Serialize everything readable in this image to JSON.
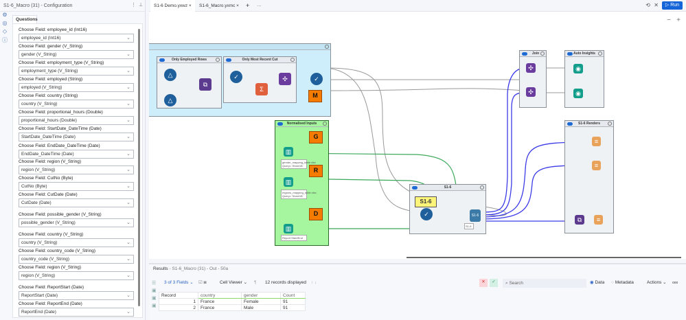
{
  "config": {
    "title": "S1-6_Macro (31) - Configuration",
    "tab": "Questions",
    "fields": [
      {
        "label": "Choose Field: employee_id (Int16)",
        "value": "employee_id (Int16)"
      },
      {
        "label": "Choose Field: gender (V_String)",
        "value": "gender (V_String)"
      },
      {
        "label": "Choose Field: employment_type (V_String)",
        "value": "employment_type (V_String)"
      },
      {
        "label": "Choose Field: employed (String)",
        "value": "employed (V_String)"
      },
      {
        "label": "Choose Field: country (String)",
        "value": "country (V_String)"
      },
      {
        "label": "Choose Field: proportional_hours (Double)",
        "value": "proportional_hours (Double)"
      },
      {
        "label": "Choose Field: StartDate_DateTime (Date)",
        "value": "StartDate_DateTime (Date)"
      },
      {
        "label": "Choose Field: EndDate_DateTime (Date)",
        "value": "EndDate_DateTime (Date)"
      },
      {
        "label": "Choose Field: region (V_String)",
        "value": "region (V_String)"
      },
      {
        "label": "Choose Field: CutNo (Byte)",
        "value": "CutNo (Byte)"
      },
      {
        "label": "Choose Field: CutDate (Date)",
        "value": "CutDate (Date)"
      },
      {
        "label": "Choose Field: possible_gender (V_String)",
        "value": "possible_gender (V_String)"
      },
      {
        "label": "Choose Field: country (V_String)",
        "value": "country (V_String)"
      },
      {
        "label": "Choose Field: country_code (V_String)",
        "value": "country_code (V_String)"
      },
      {
        "label": "Choose Field: region (V_String)",
        "value": "region (V_String)"
      },
      {
        "label": "Choose Field: ReportStart (Date)",
        "value": "ReportStart (Date)"
      },
      {
        "label": "Choose Field: ReportEnd (Date)",
        "value": "ReportEnd (Date)"
      }
    ]
  },
  "tabs": [
    {
      "label": "S1-6 Demo.yxwz ×"
    },
    {
      "label": "S1-6_Macro.yxmc ×"
    }
  ],
  "toolbar": {
    "run": "Run"
  },
  "canvas": {
    "containers": {
      "employed": "Only Employed Rows",
      "recent": "Only Most Recent Cut",
      "normalised": "Normalised Inputs",
      "join": "Join",
      "insights": "Auto Insights",
      "renders": "S1-6 Renders",
      "s16": "S1-6"
    },
    "labels": {
      "m": "M",
      "g": "G",
      "r": "R",
      "d": "D",
      "s16": "S1-6",
      "s16small": "S1-6"
    },
    "notes": [
      "gender_mapping_table.xlsx Query=`Sheet1$`",
      "regions_mapping_table.xlsx Query=`Sheet1$`",
      "Report Start/End"
    ]
  },
  "results": {
    "title": "Results",
    "subtitle": "- S1-6_Macro (31) - Out - 50a",
    "fields": "3 of 3 Fields",
    "viewer": "Cell Viewer",
    "records": "12 records displayed",
    "search_placeholder": "Search",
    "data": "Data",
    "metadata": "Metadata",
    "actions": "Actions",
    "columns": [
      "Record",
      "country",
      "gender",
      "Count"
    ],
    "rows": [
      [
        "1",
        "France",
        "Female",
        "91"
      ],
      [
        "2",
        "France",
        "Male",
        "91"
      ]
    ]
  }
}
